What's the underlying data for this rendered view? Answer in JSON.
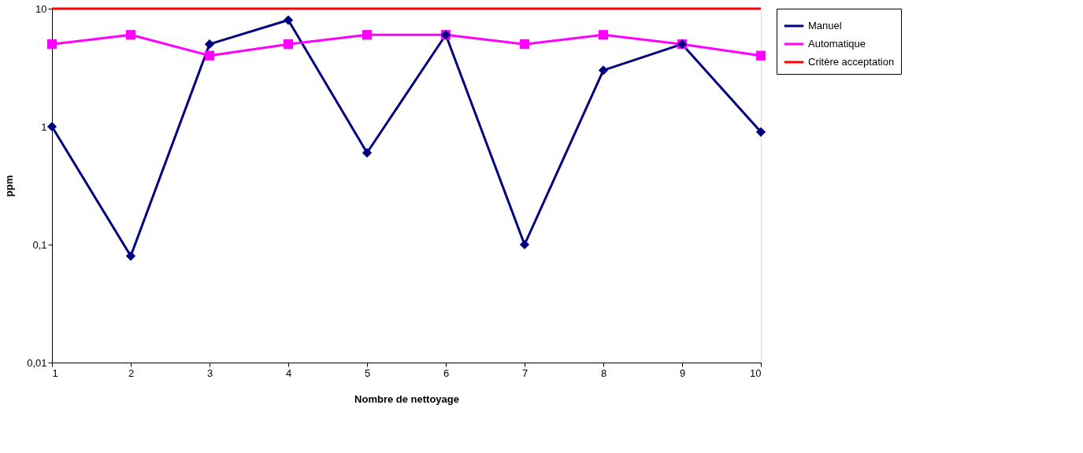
{
  "chart_data": {
    "type": "line",
    "xlabel": "Nombre de nettoyage",
    "ylabel": "ppm",
    "x": [
      1,
      2,
      3,
      4,
      5,
      6,
      7,
      8,
      9,
      10
    ],
    "series": [
      {
        "name": "Manuel",
        "color": "#000080",
        "marker": "diamond",
        "values": [
          1,
          0.08,
          5,
          8,
          0.6,
          6,
          0.1,
          3,
          5,
          0.9
        ]
      },
      {
        "name": "Automatique",
        "color": "#ff00ff",
        "marker": "square",
        "values": [
          5,
          6,
          4,
          5,
          6,
          6,
          5,
          6,
          5,
          4
        ]
      },
      {
        "name": "Critère acceptation",
        "color": "#ff0000",
        "marker": "none",
        "values": [
          10,
          10,
          10,
          10,
          10,
          10,
          10,
          10,
          10,
          10
        ]
      }
    ],
    "log": true,
    "ylim": [
      0.01,
      10
    ],
    "yticks": [
      {
        "value": 0.01,
        "label": "0,01"
      },
      {
        "value": 0.1,
        "label": "0,1"
      },
      {
        "value": 1,
        "label": "1"
      },
      {
        "value": 10,
        "label": "10"
      }
    ],
    "xlim": [
      1,
      10
    ],
    "xticks": [
      1,
      2,
      3,
      4,
      5,
      6,
      7,
      8,
      9,
      10
    ],
    "grid": false,
    "legend": "right",
    "line_style": "solid"
  }
}
